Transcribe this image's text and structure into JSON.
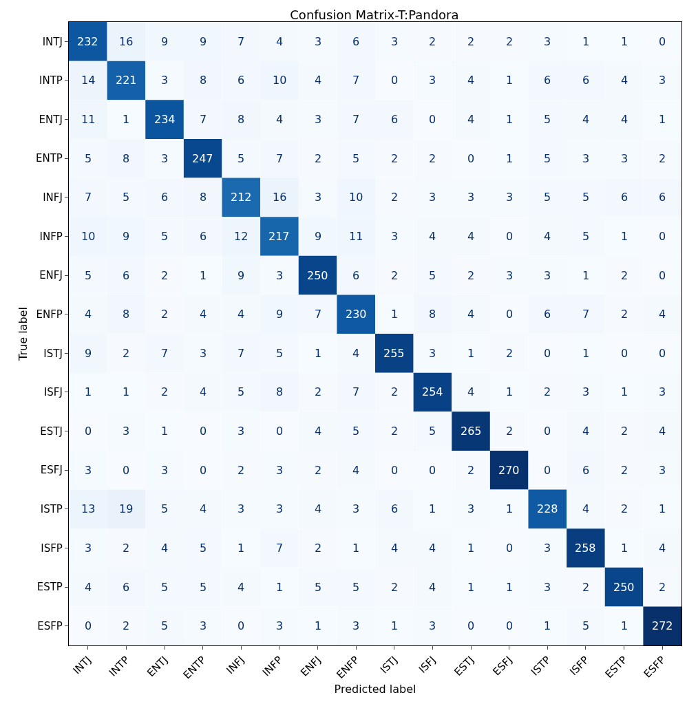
{
  "chart_data": {
    "type": "heatmap",
    "title": "Confusion Matrix-T:Pandora",
    "xlabel": "Predicted label",
    "ylabel": "True label",
    "categories": [
      "INTJ",
      "INTP",
      "ENTJ",
      "ENTP",
      "INFJ",
      "INFP",
      "ENFJ",
      "ENFP",
      "ISTJ",
      "ISFJ",
      "ESTJ",
      "ESFJ",
      "ISTP",
      "ISFP",
      "ESTP",
      "ESFP"
    ],
    "y_categories": [
      "INTJ",
      "INTP",
      "ENTJ",
      "ENTP",
      "INFJ",
      "INFP",
      "ENFJ",
      "ENFP",
      "ISTJ",
      "ISFJ",
      "ESTJ",
      "ESFJ",
      "ISTP",
      "ISFP",
      "ESTP",
      "ESFP"
    ],
    "cells": [
      [
        232,
        16,
        9,
        9,
        7,
        4,
        3,
        6,
        3,
        2,
        2,
        2,
        3,
        1,
        1,
        0
      ],
      [
        14,
        221,
        3,
        8,
        6,
        10,
        4,
        7,
        0,
        3,
        4,
        1,
        6,
        6,
        4,
        3
      ],
      [
        11,
        1,
        234,
        7,
        8,
        4,
        3,
        7,
        6,
        0,
        4,
        1,
        5,
        4,
        4,
        1
      ],
      [
        5,
        8,
        3,
        247,
        5,
        7,
        2,
        5,
        2,
        2,
        0,
        1,
        5,
        3,
        3,
        2
      ],
      [
        7,
        5,
        6,
        8,
        212,
        16,
        3,
        10,
        2,
        3,
        3,
        3,
        5,
        5,
        6,
        6
      ],
      [
        10,
        9,
        5,
        6,
        12,
        217,
        9,
        11,
        3,
        4,
        4,
        0,
        4,
        5,
        1,
        0
      ],
      [
        5,
        6,
        2,
        1,
        9,
        3,
        250,
        6,
        2,
        5,
        2,
        3,
        3,
        1,
        2,
        0
      ],
      [
        4,
        8,
        2,
        4,
        4,
        9,
        7,
        230,
        1,
        8,
        4,
        0,
        6,
        7,
        2,
        4
      ],
      [
        9,
        2,
        7,
        3,
        7,
        5,
        1,
        4,
        255,
        3,
        1,
        2,
        0,
        1,
        0,
        0
      ],
      [
        1,
        1,
        2,
        4,
        5,
        8,
        2,
        7,
        2,
        254,
        4,
        1,
        2,
        3,
        1,
        3
      ],
      [
        0,
        3,
        1,
        0,
        3,
        0,
        4,
        5,
        2,
        5,
        265,
        2,
        0,
        4,
        2,
        4
      ],
      [
        3,
        0,
        3,
        0,
        2,
        3,
        2,
        4,
        0,
        0,
        2,
        270,
        0,
        6,
        2,
        3
      ],
      [
        13,
        19,
        5,
        4,
        3,
        3,
        4,
        3,
        6,
        1,
        3,
        1,
        228,
        4,
        2,
        1
      ],
      [
        3,
        2,
        4,
        5,
        1,
        7,
        2,
        1,
        4,
        4,
        1,
        0,
        3,
        258,
        1,
        4
      ],
      [
        4,
        6,
        5,
        5,
        4,
        1,
        5,
        5,
        2,
        4,
        1,
        1,
        3,
        2,
        250,
        2
      ],
      [
        0,
        2,
        5,
        3,
        0,
        3,
        1,
        3,
        1,
        3,
        0,
        0,
        1,
        5,
        1,
        272
      ]
    ],
    "data_labels": true
  }
}
